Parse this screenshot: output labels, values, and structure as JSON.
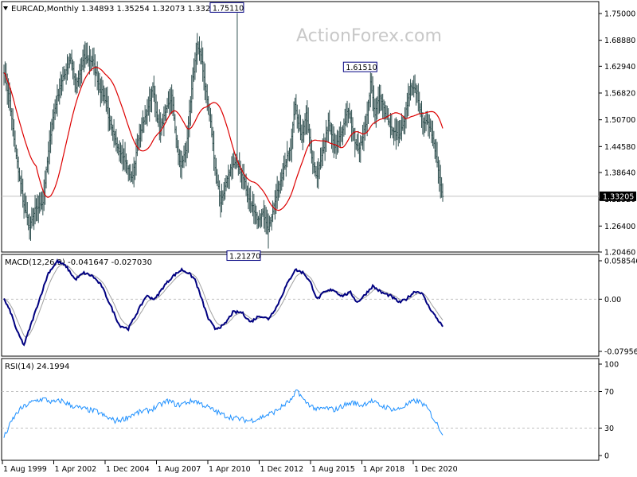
{
  "header": {
    "symbol": "EURCAD,Monthly",
    "ohlc": "1.34893 1.35254 1.32073 1.33205"
  },
  "watermark": "ActionForex.com",
  "colors": {
    "bar": "#2f4f4f",
    "ma": "#dd0000",
    "macd": "#000080",
    "signal": "#a0a0a0",
    "rsi": "#1e90ff",
    "frame": "#000000",
    "grid": "#c0c0c0"
  },
  "chart_data": [
    {
      "type": "ohlc-bar",
      "panel": "price",
      "title": "EURCAD,Monthly",
      "x_ticks": [
        "1 Aug 1999",
        "1 Apr 2002",
        "1 Dec 2004",
        "1 Aug 2007",
        "1 Apr 2010",
        "1 Dec 2012",
        "1 Aug 2015",
        "1 Apr 2018",
        "1 Dec 2020"
      ],
      "y_ticks": [
        "1.75000",
        "1.68880",
        "1.62940",
        "1.56820",
        "1.50700",
        "1.44580",
        "1.38640",
        "1.32520",
        "1.26400",
        "1.20460"
      ],
      "ylim": [
        1.2046,
        1.75
      ],
      "annotations": [
        {
          "label": "1.75110",
          "value": 1.7511
        },
        {
          "label": "1.61510",
          "value": 1.6151
        },
        {
          "label": "1.21270",
          "value": 1.2127
        }
      ],
      "last_price": {
        "label": "1.33205",
        "value": 1.33205
      },
      "close_anchors": [
        [
          0,
          1.62
        ],
        [
          5,
          1.55
        ],
        [
          10,
          1.44
        ],
        [
          18,
          1.31
        ],
        [
          23,
          1.26
        ],
        [
          28,
          1.3
        ],
        [
          35,
          1.32
        ],
        [
          43,
          1.5
        ],
        [
          50,
          1.58
        ],
        [
          60,
          1.65
        ],
        [
          65,
          1.58
        ],
        [
          72,
          1.65
        ],
        [
          80,
          1.64
        ],
        [
          86,
          1.58
        ],
        [
          92,
          1.55
        ],
        [
          95,
          1.5
        ],
        [
          100,
          1.46
        ],
        [
          108,
          1.42
        ],
        [
          115,
          1.37
        ],
        [
          122,
          1.47
        ],
        [
          128,
          1.52
        ],
        [
          134,
          1.58
        ],
        [
          140,
          1.48
        ],
        [
          145,
          1.52
        ],
        [
          151,
          1.56
        ],
        [
          156,
          1.44
        ],
        [
          159,
          1.4
        ],
        [
          164,
          1.44
        ],
        [
          170,
          1.6
        ],
        [
          174,
          1.68
        ],
        [
          178,
          1.64
        ],
        [
          182,
          1.57
        ],
        [
          186,
          1.5
        ],
        [
          190,
          1.4
        ],
        [
          195,
          1.32
        ],
        [
          200,
          1.36
        ],
        [
          205,
          1.4
        ],
        [
          210,
          1.41
        ],
        [
          215,
          1.38
        ],
        [
          220,
          1.33
        ],
        [
          228,
          1.28
        ],
        [
          233,
          1.29
        ],
        [
          238,
          1.26
        ],
        [
          242,
          1.3
        ],
        [
          246,
          1.34
        ],
        [
          252,
          1.4
        ],
        [
          258,
          1.44
        ],
        [
          262,
          1.54
        ],
        [
          268,
          1.46
        ],
        [
          272,
          1.52
        ],
        [
          278,
          1.4
        ],
        [
          282,
          1.38
        ],
        [
          286,
          1.42
        ],
        [
          292,
          1.5
        ],
        [
          298,
          1.44
        ],
        [
          304,
          1.48
        ],
        [
          310,
          1.53
        ],
        [
          316,
          1.46
        ],
        [
          320,
          1.44
        ],
        [
          326,
          1.5
        ],
        [
          330,
          1.59
        ],
        [
          334,
          1.52
        ],
        [
          338,
          1.56
        ],
        [
          344,
          1.52
        ],
        [
          350,
          1.48
        ],
        [
          356,
          1.47
        ],
        [
          360,
          1.5
        ],
        [
          366,
          1.58
        ],
        [
          372,
          1.57
        ],
        [
          376,
          1.51
        ],
        [
          380,
          1.5
        ],
        [
          384,
          1.49
        ],
        [
          388,
          1.44
        ],
        [
          392,
          1.38
        ],
        [
          395,
          1.33
        ]
      ],
      "highlights": [
        [
          210,
          1.7511
        ],
        [
          238,
          1.2127
        ],
        [
          330,
          1.6151
        ]
      ]
    },
    {
      "type": "line",
      "panel": "macd",
      "title": "MACD(12,26,9) -0.041647 -0.027030",
      "y_ticks": [
        "0.058546",
        "0.00",
        "-0.079564"
      ],
      "ylim": [
        -0.079564,
        0.058546
      ],
      "macd_anchors": [
        [
          0,
          0.0
        ],
        [
          6,
          -0.02
        ],
        [
          12,
          -0.05
        ],
        [
          18,
          -0.07
        ],
        [
          24,
          -0.04
        ],
        [
          32,
          0.0
        ],
        [
          40,
          0.04
        ],
        [
          48,
          0.058
        ],
        [
          56,
          0.05
        ],
        [
          64,
          0.03
        ],
        [
          72,
          0.04
        ],
        [
          80,
          0.035
        ],
        [
          88,
          0.02
        ],
        [
          96,
          -0.01
        ],
        [
          104,
          -0.04
        ],
        [
          112,
          -0.045
        ],
        [
          120,
          -0.02
        ],
        [
          128,
          0.005
        ],
        [
          136,
          0.0
        ],
        [
          144,
          0.02
        ],
        [
          152,
          0.035
        ],
        [
          160,
          0.045
        ],
        [
          166,
          0.04
        ],
        [
          172,
          0.03
        ],
        [
          178,
          0.0
        ],
        [
          184,
          -0.03
        ],
        [
          190,
          -0.045
        ],
        [
          198,
          -0.04
        ],
        [
          206,
          -0.02
        ],
        [
          214,
          -0.02
        ],
        [
          222,
          -0.035
        ],
        [
          230,
          -0.025
        ],
        [
          238,
          -0.03
        ],
        [
          246,
          -0.01
        ],
        [
          254,
          0.02
        ],
        [
          262,
          0.045
        ],
        [
          270,
          0.04
        ],
        [
          276,
          0.025
        ],
        [
          282,
          0.0
        ],
        [
          288,
          0.01
        ],
        [
          296,
          0.015
        ],
        [
          304,
          0.005
        ],
        [
          312,
          0.01
        ],
        [
          318,
          -0.005
        ],
        [
          324,
          0.005
        ],
        [
          332,
          0.02
        ],
        [
          340,
          0.01
        ],
        [
          348,
          0.005
        ],
        [
          356,
          -0.005
        ],
        [
          362,
          0.0
        ],
        [
          370,
          0.012
        ],
        [
          376,
          0.01
        ],
        [
          382,
          -0.01
        ],
        [
          388,
          -0.025
        ],
        [
          395,
          -0.041647
        ]
      ]
    },
    {
      "type": "line",
      "panel": "rsi",
      "title": "RSI(14) 24.1994",
      "y_ticks": [
        "100",
        "70",
        "30",
        "0"
      ],
      "ylim": [
        0,
        100
      ],
      "levels": [
        70,
        30
      ],
      "rsi_anchors": [
        [
          0,
          20
        ],
        [
          4,
          30
        ],
        [
          8,
          40
        ],
        [
          14,
          50
        ],
        [
          20,
          55
        ],
        [
          28,
          60
        ],
        [
          36,
          62
        ],
        [
          44,
          58
        ],
        [
          52,
          60
        ],
        [
          60,
          55
        ],
        [
          68,
          52
        ],
        [
          76,
          50
        ],
        [
          84,
          48
        ],
        [
          92,
          42
        ],
        [
          100,
          38
        ],
        [
          108,
          40
        ],
        [
          116,
          45
        ],
        [
          124,
          48
        ],
        [
          132,
          50
        ],
        [
          140,
          55
        ],
        [
          148,
          60
        ],
        [
          156,
          55
        ],
        [
          164,
          58
        ],
        [
          172,
          60
        ],
        [
          180,
          55
        ],
        [
          188,
          50
        ],
        [
          196,
          45
        ],
        [
          204,
          42
        ],
        [
          212,
          40
        ],
        [
          220,
          38
        ],
        [
          228,
          40
        ],
        [
          236,
          44
        ],
        [
          244,
          48
        ],
        [
          252,
          55
        ],
        [
          260,
          62
        ],
        [
          264,
          72
        ],
        [
          270,
          60
        ],
        [
          276,
          55
        ],
        [
          282,
          50
        ],
        [
          290,
          52
        ],
        [
          298,
          50
        ],
        [
          306,
          55
        ],
        [
          314,
          58
        ],
        [
          322,
          55
        ],
        [
          330,
          60
        ],
        [
          338,
          55
        ],
        [
          346,
          52
        ],
        [
          354,
          50
        ],
        [
          362,
          55
        ],
        [
          370,
          60
        ],
        [
          376,
          58
        ],
        [
          382,
          50
        ],
        [
          388,
          38
        ],
        [
          395,
          24.1994
        ]
      ]
    }
  ]
}
